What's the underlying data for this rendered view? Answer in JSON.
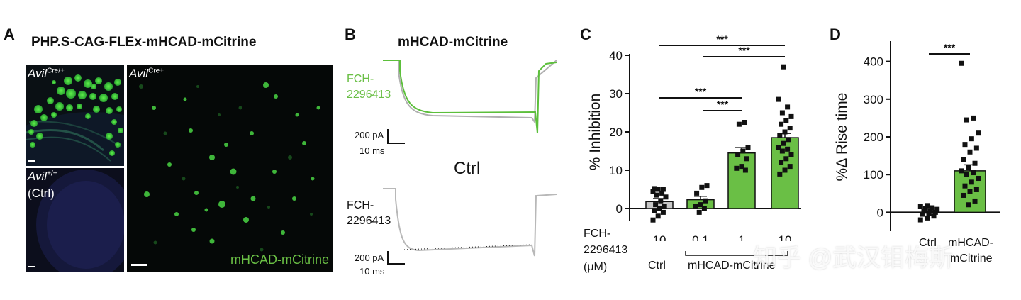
{
  "panels": {
    "a": {
      "letter": "A",
      "title": "PHP.S-CAG-FLEx-mHCAD-mCitrine",
      "img1_genotype": "Avil",
      "img1_sup": "Cre/+",
      "img2_genotype": "Avil",
      "img2_sup": "+/+",
      "img2_sub": "(Ctrl)",
      "img3_genotype": "Avil",
      "img3_sup": "Cre+",
      "img3_caption": "mHCAD-mCitrine"
    },
    "b": {
      "letter": "B",
      "title": "mHCAD-mCitrine",
      "drug_line1": "FCH-",
      "drug_line2": "2296413",
      "scale_pa": "200 pA",
      "scale_ms": "10 ms",
      "ctrl_label": "Ctrl",
      "drug2_line1": "FCH-",
      "drug2_line2": "2296413",
      "scale2_pa": "200 pA",
      "scale2_ms": "10 ms"
    },
    "c": {
      "letter": "C",
      "ylabel": "% Inhibition",
      "sig": [
        "***",
        "***",
        "***",
        "***"
      ],
      "x_label_line1": "FCH-",
      "x_label_line2": "2296413",
      "x_label_line3": "(μM)",
      "group_ctrl": "Ctrl",
      "group_treat": "mHCAD-mCitrine"
    },
    "d": {
      "letter": "D",
      "ylabel": "%Δ Rise time",
      "sig": "***",
      "cat_ctrl": "Ctrl",
      "cat_treat_line1": "mHCAD-",
      "cat_treat_line2": "mCitrine"
    }
  },
  "colors": {
    "green": "#6abf45",
    "trace_green": "#5cbf3b",
    "grey_bar": "#c8c8c8",
    "trace_grey": "#b0b0b0",
    "text": "#111111",
    "green_text": "#6abf45"
  },
  "watermark": "知乎 @武汉钼梅斯",
  "chart_data": [
    {
      "type": "bar",
      "panel": "C",
      "categories": [
        "10",
        "0.1",
        "1",
        "10"
      ],
      "values": [
        1.8,
        2.3,
        14.5,
        18.5
      ],
      "errors": [
        0.8,
        0.9,
        1.4,
        1.1
      ],
      "groups": [
        "Ctrl",
        "mHCAD-mCitrine",
        "mHCAD-mCitrine",
        "mHCAD-mCitrine"
      ],
      "points": [
        [
          -3,
          -2,
          -1,
          -0.5,
          0,
          0.5,
          1,
          2,
          3,
          3.5,
          4,
          4.5,
          5,
          5,
          5.2
        ],
        [
          -1,
          0,
          0.5,
          1,
          2,
          4,
          5.5,
          6
        ],
        [
          10,
          10.5,
          11,
          13,
          14,
          15,
          16,
          22,
          22.5
        ],
        [
          9,
          10,
          11,
          12,
          13,
          14,
          15,
          15.5,
          16,
          17,
          18,
          19,
          20,
          21,
          22,
          23,
          24,
          25,
          26.5,
          28.5,
          37
        ]
      ],
      "bar_colors": [
        "#c8c8c8",
        "#6abf45",
        "#6abf45",
        "#6abf45"
      ],
      "ylabel": "% Inhibition",
      "ylim": [
        0,
        40
      ],
      "yticks": [
        0,
        10,
        20,
        30,
        40
      ],
      "significance": [
        {
          "from": 0,
          "to": 3,
          "label": "***"
        },
        {
          "from": 1,
          "to": 3,
          "label": "***"
        },
        {
          "from": 0,
          "to": 2,
          "label": "***"
        },
        {
          "from": 1,
          "to": 2,
          "label": "***"
        }
      ]
    },
    {
      "type": "bar",
      "panel": "D",
      "categories": [
        "Ctrl",
        "mHCAD-mCitrine"
      ],
      "values": [
        0,
        110
      ],
      "errors": [
        3,
        16
      ],
      "points": [
        [
          -20,
          -15,
          -10,
          -5,
          -3,
          0,
          3,
          5,
          8,
          10,
          12,
          15,
          18
        ],
        [
          20,
          30,
          45,
          55,
          60,
          70,
          80,
          90,
          100,
          105,
          110,
          120,
          130,
          140,
          160,
          170,
          180,
          195,
          210,
          245,
          250,
          395
        ]
      ],
      "bar_colors": [
        "#ffffff",
        "#6abf45"
      ],
      "ylabel": "%Δ Rise time",
      "ylim": [
        -50,
        450
      ],
      "yticks": [
        0,
        100,
        200,
        300,
        400
      ],
      "significance": [
        {
          "from": 0,
          "to": 1,
          "label": "***"
        }
      ]
    }
  ]
}
